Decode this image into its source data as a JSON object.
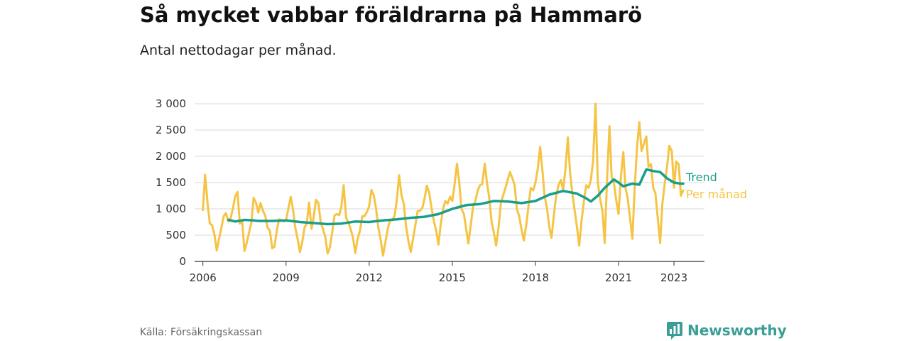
{
  "title": "Så mycket vabbar föräldrarna på Hammarö",
  "subtitle": "Antal nettodagar per månad.",
  "source": "Källa: Försäkringskassan",
  "brand": {
    "name": "Newsworthy",
    "icon": "newsworthy-logo-icon"
  },
  "colors": {
    "trend": "#1a9e8c",
    "monthly": "#f6c445",
    "grid": "#d9d9d9",
    "axis": "#333333"
  },
  "chart_data": {
    "type": "line",
    "title": "Så mycket vabbar föräldrarna på Hammarö",
    "subtitle": "Antal nettodagar per månad.",
    "x_axis": {
      "min": 2005.7,
      "max": 2024.1,
      "ticks": [
        2006,
        2009,
        2012,
        2015,
        2018,
        2021,
        2023
      ]
    },
    "y_axis": {
      "min": 0,
      "max": 3000,
      "ticks": [
        0,
        500,
        1000,
        1500,
        2000,
        2500,
        3000
      ],
      "tick_labels": [
        "0",
        "500",
        "1 000",
        "1 500",
        "2 000",
        "2 500",
        "3 000"
      ]
    },
    "grid": true,
    "legend": "direct labels at right end of lines",
    "series": [
      {
        "name": "Per månad",
        "color": "#f6c445",
        "points": [
          [
            2006.0,
            980
          ],
          [
            2006.08,
            1650
          ],
          [
            2006.17,
            1100
          ],
          [
            2006.25,
            720
          ],
          [
            2006.33,
            690
          ],
          [
            2006.42,
            500
          ],
          [
            2006.5,
            210
          ],
          [
            2006.58,
            420
          ],
          [
            2006.67,
            650
          ],
          [
            2006.75,
            860
          ],
          [
            2006.83,
            920
          ],
          [
            2006.92,
            760
          ],
          [
            2007.0,
            820
          ],
          [
            2007.08,
            1000
          ],
          [
            2007.17,
            1250
          ],
          [
            2007.25,
            1320
          ],
          [
            2007.33,
            720
          ],
          [
            2007.42,
            760
          ],
          [
            2007.5,
            200
          ],
          [
            2007.58,
            350
          ],
          [
            2007.67,
            560
          ],
          [
            2007.75,
            740
          ],
          [
            2007.83,
            1210
          ],
          [
            2007.92,
            1110
          ],
          [
            2008.0,
            930
          ],
          [
            2008.08,
            1110
          ],
          [
            2008.17,
            960
          ],
          [
            2008.25,
            870
          ],
          [
            2008.33,
            650
          ],
          [
            2008.42,
            580
          ],
          [
            2008.5,
            250
          ],
          [
            2008.58,
            280
          ],
          [
            2008.67,
            600
          ],
          [
            2008.75,
            800
          ],
          [
            2008.83,
            790
          ],
          [
            2008.92,
            760
          ],
          [
            2009.0,
            780
          ],
          [
            2009.08,
            1000
          ],
          [
            2009.17,
            1230
          ],
          [
            2009.25,
            1000
          ],
          [
            2009.33,
            660
          ],
          [
            2009.42,
            420
          ],
          [
            2009.5,
            180
          ],
          [
            2009.58,
            350
          ],
          [
            2009.67,
            650
          ],
          [
            2009.75,
            720
          ],
          [
            2009.83,
            1120
          ],
          [
            2009.92,
            620
          ],
          [
            2010.0,
            850
          ],
          [
            2010.08,
            1170
          ],
          [
            2010.17,
            1110
          ],
          [
            2010.25,
            750
          ],
          [
            2010.33,
            620
          ],
          [
            2010.42,
            460
          ],
          [
            2010.5,
            150
          ],
          [
            2010.58,
            260
          ],
          [
            2010.67,
            560
          ],
          [
            2010.75,
            880
          ],
          [
            2010.83,
            900
          ],
          [
            2010.92,
            880
          ],
          [
            2011.0,
            1050
          ],
          [
            2011.08,
            1450
          ],
          [
            2011.17,
            830
          ],
          [
            2011.25,
            740
          ],
          [
            2011.33,
            620
          ],
          [
            2011.42,
            440
          ],
          [
            2011.5,
            160
          ],
          [
            2011.58,
            420
          ],
          [
            2011.67,
            590
          ],
          [
            2011.75,
            860
          ],
          [
            2011.83,
            860
          ],
          [
            2011.92,
            940
          ],
          [
            2012.0,
            1050
          ],
          [
            2012.08,
            1360
          ],
          [
            2012.17,
            1250
          ],
          [
            2012.25,
            1000
          ],
          [
            2012.33,
            650
          ],
          [
            2012.42,
            400
          ],
          [
            2012.5,
            110
          ],
          [
            2012.58,
            350
          ],
          [
            2012.67,
            620
          ],
          [
            2012.75,
            780
          ],
          [
            2012.83,
            780
          ],
          [
            2012.92,
            870
          ],
          [
            2013.0,
            1180
          ],
          [
            2013.08,
            1640
          ],
          [
            2013.17,
            1250
          ],
          [
            2013.25,
            1100
          ],
          [
            2013.33,
            680
          ],
          [
            2013.42,
            380
          ],
          [
            2013.5,
            180
          ],
          [
            2013.58,
            420
          ],
          [
            2013.67,
            700
          ],
          [
            2013.75,
            960
          ],
          [
            2013.83,
            960
          ],
          [
            2013.92,
            1020
          ],
          [
            2014.0,
            1200
          ],
          [
            2014.08,
            1440
          ],
          [
            2014.17,
            1300
          ],
          [
            2014.25,
            1020
          ],
          [
            2014.33,
            780
          ],
          [
            2014.42,
            580
          ],
          [
            2014.5,
            320
          ],
          [
            2014.58,
            700
          ],
          [
            2014.67,
            1000
          ],
          [
            2014.75,
            1150
          ],
          [
            2014.83,
            1100
          ],
          [
            2014.92,
            1230
          ],
          [
            2015.0,
            1150
          ],
          [
            2015.08,
            1450
          ],
          [
            2015.17,
            1860
          ],
          [
            2015.25,
            1500
          ],
          [
            2015.33,
            1000
          ],
          [
            2015.42,
            900
          ],
          [
            2015.5,
            620
          ],
          [
            2015.58,
            340
          ],
          [
            2015.67,
            700
          ],
          [
            2015.75,
            1050
          ],
          [
            2015.83,
            1150
          ],
          [
            2015.92,
            1350
          ],
          [
            2016.0,
            1450
          ],
          [
            2016.08,
            1470
          ],
          [
            2016.17,
            1860
          ],
          [
            2016.25,
            1500
          ],
          [
            2016.33,
            1220
          ],
          [
            2016.42,
            750
          ],
          [
            2016.5,
            550
          ],
          [
            2016.58,
            300
          ],
          [
            2016.67,
            650
          ],
          [
            2016.75,
            1100
          ],
          [
            2016.83,
            1250
          ],
          [
            2016.92,
            1400
          ],
          [
            2017.0,
            1550
          ],
          [
            2017.08,
            1700
          ],
          [
            2017.17,
            1580
          ],
          [
            2017.25,
            1450
          ],
          [
            2017.33,
            1000
          ],
          [
            2017.42,
            850
          ],
          [
            2017.5,
            600
          ],
          [
            2017.58,
            400
          ],
          [
            2017.67,
            700
          ],
          [
            2017.75,
            1050
          ],
          [
            2017.83,
            1400
          ],
          [
            2017.92,
            1350
          ],
          [
            2018.0,
            1500
          ],
          [
            2018.08,
            1750
          ],
          [
            2018.17,
            2180
          ],
          [
            2018.25,
            1750
          ],
          [
            2018.33,
            1250
          ],
          [
            2018.42,
            1000
          ],
          [
            2018.5,
            650
          ],
          [
            2018.58,
            450
          ],
          [
            2018.67,
            900
          ],
          [
            2018.75,
            1250
          ],
          [
            2018.83,
            1450
          ],
          [
            2018.92,
            1550
          ],
          [
            2019.0,
            1350
          ],
          [
            2019.08,
            1750
          ],
          [
            2019.17,
            2360
          ],
          [
            2019.25,
            1700
          ],
          [
            2019.33,
            1300
          ],
          [
            2019.42,
            950
          ],
          [
            2019.5,
            650
          ],
          [
            2019.58,
            300
          ],
          [
            2019.67,
            800
          ],
          [
            2019.75,
            1150
          ],
          [
            2019.83,
            1450
          ],
          [
            2019.92,
            1400
          ],
          [
            2020.0,
            1550
          ],
          [
            2020.08,
            1900
          ],
          [
            2020.17,
            3000
          ],
          [
            2020.25,
            1500
          ],
          [
            2020.33,
            1200
          ],
          [
            2020.42,
            950
          ],
          [
            2020.5,
            350
          ],
          [
            2020.58,
            1500
          ],
          [
            2020.67,
            2570
          ],
          [
            2020.75,
            1600
          ],
          [
            2020.83,
            1500
          ],
          [
            2020.92,
            1150
          ],
          [
            2021.0,
            900
          ],
          [
            2021.08,
            1600
          ],
          [
            2021.17,
            2080
          ],
          [
            2021.25,
            1400
          ],
          [
            2021.33,
            1200
          ],
          [
            2021.42,
            800
          ],
          [
            2021.5,
            430
          ],
          [
            2021.58,
            1400
          ],
          [
            2021.67,
            2200
          ],
          [
            2021.75,
            2650
          ],
          [
            2021.83,
            2100
          ],
          [
            2021.92,
            2250
          ],
          [
            2022.0,
            2380
          ],
          [
            2022.08,
            1800
          ],
          [
            2022.17,
            1850
          ],
          [
            2022.25,
            1400
          ],
          [
            2022.33,
            1300
          ],
          [
            2022.42,
            800
          ],
          [
            2022.5,
            350
          ],
          [
            2022.58,
            1100
          ],
          [
            2022.67,
            1500
          ],
          [
            2022.75,
            1800
          ],
          [
            2022.83,
            2200
          ],
          [
            2022.92,
            2100
          ],
          [
            2023.0,
            1400
          ],
          [
            2023.08,
            1900
          ],
          [
            2023.17,
            1850
          ],
          [
            2023.25,
            1250
          ],
          [
            2023.33,
            1350
          ]
        ]
      },
      {
        "name": "Trend",
        "color": "#1a9e8c",
        "points": [
          [
            2006.92,
            790
          ],
          [
            2007.17,
            760
          ],
          [
            2007.5,
            790
          ],
          [
            2007.83,
            780
          ],
          [
            2008.0,
            770
          ],
          [
            2008.5,
            770
          ],
          [
            2009.0,
            780
          ],
          [
            2009.5,
            750
          ],
          [
            2010.0,
            730
          ],
          [
            2010.5,
            710
          ],
          [
            2011.0,
            720
          ],
          [
            2011.5,
            760
          ],
          [
            2012.0,
            750
          ],
          [
            2012.5,
            780
          ],
          [
            2013.0,
            800
          ],
          [
            2013.5,
            830
          ],
          [
            2014.0,
            850
          ],
          [
            2014.5,
            900
          ],
          [
            2015.0,
            1000
          ],
          [
            2015.5,
            1070
          ],
          [
            2016.0,
            1090
          ],
          [
            2016.5,
            1150
          ],
          [
            2017.0,
            1140
          ],
          [
            2017.5,
            1110
          ],
          [
            2018.0,
            1150
          ],
          [
            2018.5,
            1270
          ],
          [
            2019.0,
            1340
          ],
          [
            2019.5,
            1290
          ],
          [
            2019.83,
            1200
          ],
          [
            2020.0,
            1140
          ],
          [
            2020.25,
            1250
          ],
          [
            2020.5,
            1400
          ],
          [
            2020.83,
            1560
          ],
          [
            2021.0,
            1500
          ],
          [
            2021.17,
            1430
          ],
          [
            2021.5,
            1480
          ],
          [
            2021.75,
            1460
          ],
          [
            2022.0,
            1750
          ],
          [
            2022.25,
            1720
          ],
          [
            2022.5,
            1700
          ],
          [
            2022.75,
            1580
          ],
          [
            2023.0,
            1500
          ],
          [
            2023.25,
            1480
          ],
          [
            2023.33,
            1480
          ]
        ]
      }
    ]
  }
}
